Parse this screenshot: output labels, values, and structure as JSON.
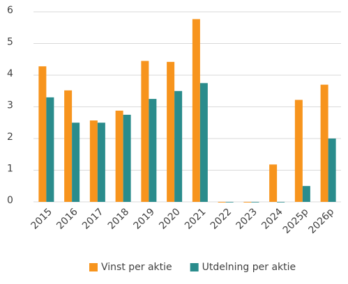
{
  "chart_data": {
    "type": "bar",
    "categories": [
      "2015",
      "2016",
      "2017",
      "2018",
      "2019",
      "2020",
      "2021",
      "2022",
      "2023",
      "2024",
      "2025p",
      "2026p"
    ],
    "series": [
      {
        "name": "Vinst per aktie",
        "color": "#f7941d",
        "values": [
          4.28,
          3.52,
          2.57,
          2.88,
          4.45,
          4.42,
          5.77,
          -0.02,
          -0.02,
          1.18,
          3.22,
          3.7
        ]
      },
      {
        "name": "Utdelning per aktie",
        "color": "#2a8c8c",
        "values": [
          3.3,
          2.5,
          2.5,
          2.75,
          3.25,
          3.5,
          3.75,
          0,
          0,
          0,
          0.5,
          2.0
        ]
      }
    ],
    "ylim": [
      0,
      6
    ],
    "yticks": [
      0,
      1,
      2,
      3,
      4,
      5,
      6
    ],
    "grid": true,
    "legend": "bottom"
  }
}
